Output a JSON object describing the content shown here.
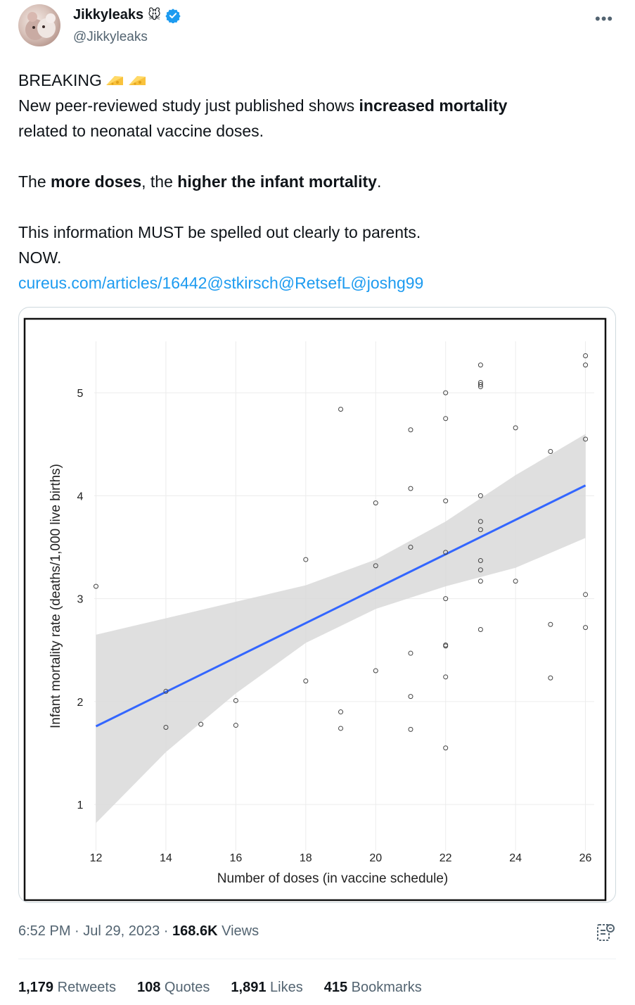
{
  "author": {
    "display_name": "Jikkyleaks",
    "name_emoji": "🐭",
    "handle": "@Jikkyleaks"
  },
  "tweet": {
    "line1": "BREAKING",
    "line2_a": "New peer-reviewed study just published shows ",
    "line2_b": "increased mortality",
    "line3": "related to neonatal vaccine doses.",
    "line4_a": "The ",
    "line4_b": "more doses",
    "line4_c": ", the ",
    "line4_d": "higher the infant mortality",
    "line4_e": ".",
    "line5": "This information MUST be spelled out clearly to parents.",
    "line6": "NOW.",
    "link_a": "cureus.com/articles/16442",
    "link_b": "@stkirsch",
    "link_c": "@RetsefL",
    "link_d": "@joshg99"
  },
  "meta": {
    "time": "6:52 PM",
    "sep1": " · ",
    "date": "Jul 29, 2023",
    "sep2": " · ",
    "views_num": "168.6K",
    "views_label": " Views"
  },
  "stats": {
    "retweets_num": "1,179",
    "retweets_label": " Retweets",
    "quotes_num": "108",
    "quotes_label": " Quotes",
    "likes_num": "1,891",
    "likes_label": " Likes",
    "bookmarks_num": "415",
    "bookmarks_label": " Bookmarks"
  },
  "colors": {
    "link": "#1d9bf0",
    "verified": "#1d9bf0",
    "trend_line": "#3366ff",
    "ci_band": "#d9d9d9"
  },
  "chart_data": {
    "type": "scatter",
    "xlabel": "Number of doses (in vaccine schedule)",
    "ylabel": "Infant mortality rate (deaths/1,000 live births)",
    "xlim": [
      11.95,
      26.25
    ],
    "ylim": [
      0.55,
      5.5
    ],
    "x_ticks": [
      12,
      14,
      16,
      18,
      20,
      22,
      24,
      26
    ],
    "y_ticks": [
      1,
      2,
      3,
      4,
      5
    ],
    "points": [
      [
        12,
        3.12
      ],
      [
        14,
        2.1
      ],
      [
        14,
        1.75
      ],
      [
        15,
        1.78
      ],
      [
        16,
        2.01
      ],
      [
        16,
        1.77
      ],
      [
        18,
        3.38
      ],
      [
        18,
        2.2
      ],
      [
        19,
        4.84
      ],
      [
        19,
        1.9
      ],
      [
        19,
        1.74
      ],
      [
        20,
        3.93
      ],
      [
        20,
        3.32
      ],
      [
        20,
        2.3
      ],
      [
        21,
        4.64
      ],
      [
        21,
        4.07
      ],
      [
        21,
        3.5
      ],
      [
        21,
        2.47
      ],
      [
        21,
        2.05
      ],
      [
        21,
        1.73
      ],
      [
        22,
        5.0
      ],
      [
        22,
        4.75
      ],
      [
        22,
        3.95
      ],
      [
        22,
        3.45
      ],
      [
        22,
        3.0
      ],
      [
        22,
        2.55
      ],
      [
        22,
        2.54
      ],
      [
        22,
        2.24
      ],
      [
        22,
        1.55
      ],
      [
        23,
        5.27
      ],
      [
        23,
        5.1
      ],
      [
        23,
        5.08
      ],
      [
        23,
        5.06
      ],
      [
        23,
        4.0
      ],
      [
        23,
        3.75
      ],
      [
        23,
        3.67
      ],
      [
        23,
        3.37
      ],
      [
        23,
        3.28
      ],
      [
        23,
        3.17
      ],
      [
        23,
        2.7
      ],
      [
        24,
        4.66
      ],
      [
        24,
        3.17
      ],
      [
        25,
        4.43
      ],
      [
        25,
        2.75
      ],
      [
        25,
        2.23
      ],
      [
        26,
        5.36
      ],
      [
        26,
        5.27
      ],
      [
        26,
        4.55
      ],
      [
        26,
        3.04
      ],
      [
        26,
        2.72
      ]
    ],
    "trend": {
      "x": [
        12,
        26
      ],
      "y": [
        1.76,
        4.1
      ]
    },
    "ci_band": {
      "x": [
        12,
        14,
        16,
        18,
        20,
        22,
        24,
        26
      ],
      "lower": [
        0.82,
        1.51,
        2.08,
        2.57,
        2.9,
        3.12,
        3.3,
        3.59
      ],
      "upper": [
        2.65,
        2.81,
        2.97,
        3.13,
        3.38,
        3.75,
        4.2,
        4.6
      ]
    }
  }
}
